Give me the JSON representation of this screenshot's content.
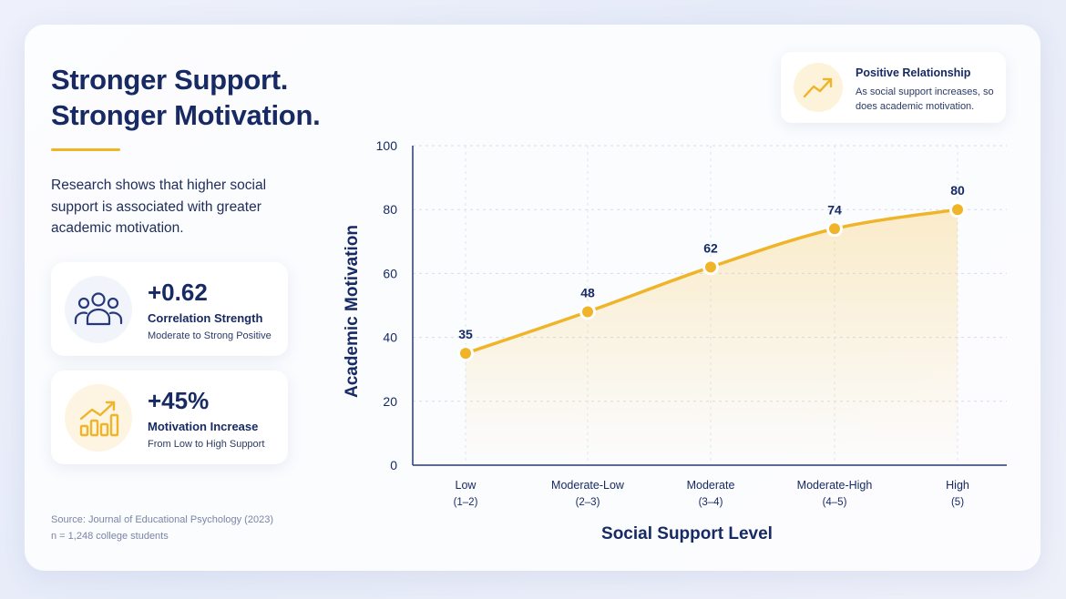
{
  "headline": {
    "line1": "Stronger Support.",
    "line2": "Stronger Motivation."
  },
  "intro": "Research shows that higher social support is associated with greater academic motivation.",
  "stats": [
    {
      "value": "+0.62",
      "label": "Correlation Strength",
      "sub": "Moderate to Strong Positive",
      "icon": "people-icon"
    },
    {
      "value": "+45%",
      "label": "Motivation Increase",
      "sub": "From Low to High Support",
      "icon": "bar-chart-growth-icon"
    }
  ],
  "source": {
    "line1": "Source: Journal of Educational Psychology (2023)",
    "line2": "n = 1,248 college students"
  },
  "callout": {
    "title": "Positive Relationship",
    "text": "As social support increases, so does academic motivation.",
    "icon": "trend-up-icon"
  },
  "colors": {
    "accent": "#f0b429",
    "navy": "#172a64",
    "icon_blue": "#26397a"
  },
  "chart_data": {
    "type": "line",
    "title": "",
    "xlabel": "Social Support Level",
    "ylabel": "Academic Motivation",
    "categories": [
      "Low",
      "Moderate-Low",
      "Moderate",
      "Moderate-High",
      "High"
    ],
    "category_sublabels": [
      "(1–2)",
      "(2–3)",
      "(3–4)",
      "(4–5)",
      "(5)"
    ],
    "values": [
      35,
      48,
      62,
      74,
      80
    ],
    "data_labels": [
      "35",
      "48",
      "62",
      "74",
      "80"
    ],
    "ylim": [
      0,
      100
    ],
    "yticks": [
      0,
      20,
      40,
      60,
      80,
      100
    ],
    "grid": true,
    "area_fill": true,
    "curve": "smooth",
    "line_color": "#f0b429"
  }
}
